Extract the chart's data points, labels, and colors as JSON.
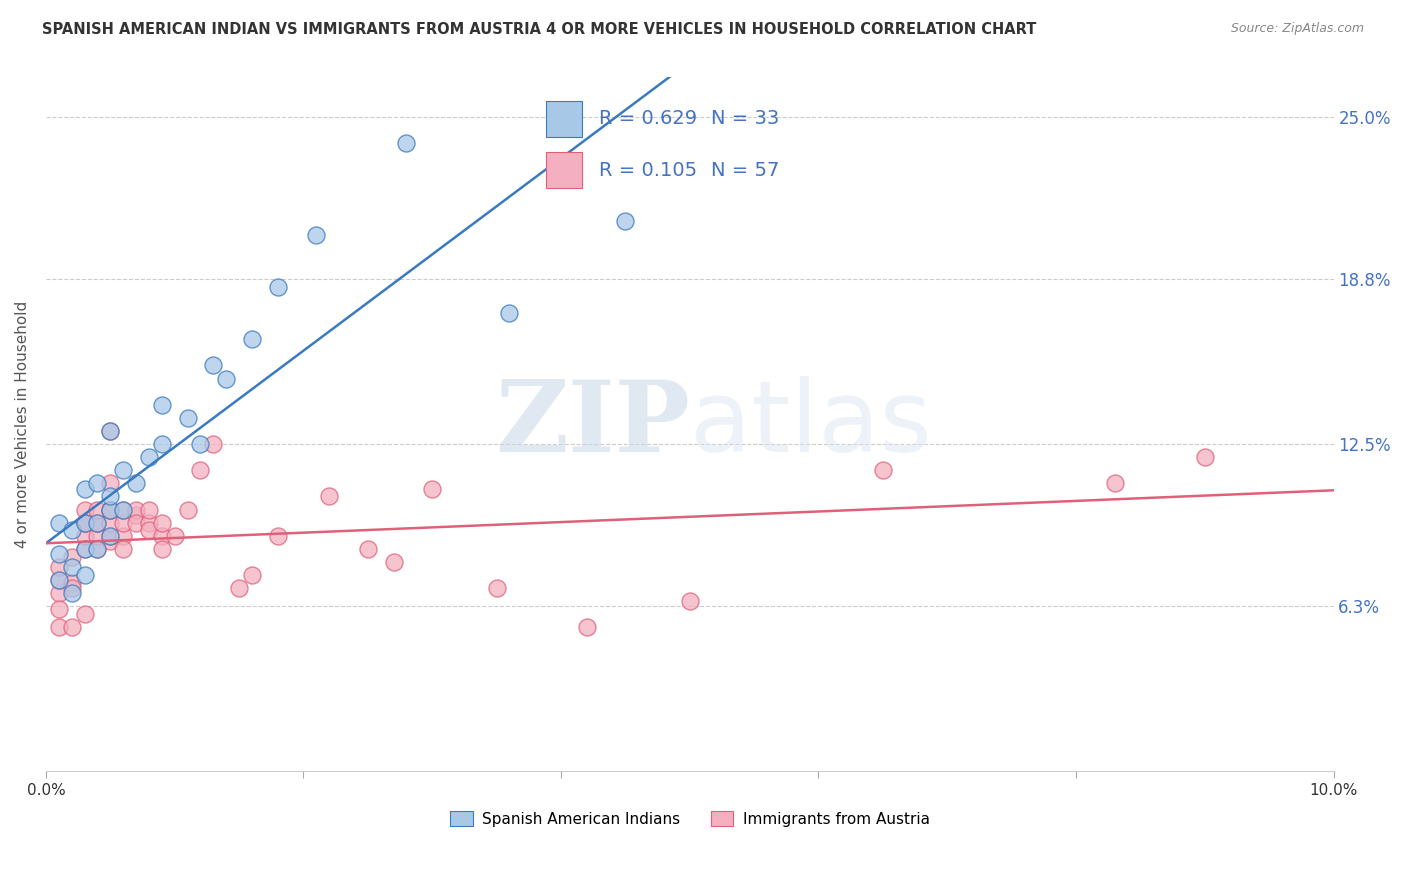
{
  "title": "SPANISH AMERICAN INDIAN VS IMMIGRANTS FROM AUSTRIA 4 OR MORE VEHICLES IN HOUSEHOLD CORRELATION CHART",
  "source": "Source: ZipAtlas.com",
  "ylabel": "4 or more Vehicles in Household",
  "xlim": [
    0.0,
    0.1
  ],
  "ylim": [
    0.0,
    0.265
  ],
  "ytick_positions": [
    0.063,
    0.125,
    0.188,
    0.25
  ],
  "ytick_labels_right": [
    "6.3%",
    "12.5%",
    "18.8%",
    "25.0%"
  ],
  "blue_R": 0.629,
  "blue_N": 33,
  "pink_R": 0.105,
  "pink_N": 57,
  "legend_label_blue": "Spanish American Indians",
  "legend_label_pink": "Immigrants from Austria",
  "blue_color": "#a8c8e8",
  "pink_color": "#f4b0c0",
  "blue_line_color": "#3a7abf",
  "pink_line_color": "#e0607a",
  "watermark_zip": "ZIP",
  "watermark_atlas": "atlas",
  "blue_x": [
    0.001,
    0.001,
    0.001,
    0.002,
    0.002,
    0.002,
    0.003,
    0.003,
    0.003,
    0.003,
    0.004,
    0.004,
    0.004,
    0.005,
    0.005,
    0.005,
    0.005,
    0.006,
    0.006,
    0.007,
    0.008,
    0.009,
    0.009,
    0.011,
    0.012,
    0.013,
    0.014,
    0.016,
    0.018,
    0.021,
    0.028,
    0.036,
    0.045
  ],
  "blue_y": [
    0.073,
    0.083,
    0.095,
    0.068,
    0.078,
    0.092,
    0.075,
    0.085,
    0.095,
    0.108,
    0.085,
    0.095,
    0.11,
    0.09,
    0.1,
    0.105,
    0.13,
    0.1,
    0.115,
    0.11,
    0.12,
    0.125,
    0.14,
    0.135,
    0.125,
    0.155,
    0.15,
    0.165,
    0.185,
    0.205,
    0.24,
    0.175,
    0.21
  ],
  "pink_x": [
    0.001,
    0.001,
    0.001,
    0.001,
    0.001,
    0.002,
    0.002,
    0.002,
    0.002,
    0.003,
    0.003,
    0.003,
    0.003,
    0.003,
    0.003,
    0.004,
    0.004,
    0.004,
    0.004,
    0.004,
    0.005,
    0.005,
    0.005,
    0.005,
    0.005,
    0.005,
    0.005,
    0.006,
    0.006,
    0.006,
    0.006,
    0.007,
    0.007,
    0.007,
    0.008,
    0.008,
    0.008,
    0.009,
    0.009,
    0.009,
    0.01,
    0.011,
    0.012,
    0.013,
    0.015,
    0.016,
    0.018,
    0.022,
    0.025,
    0.027,
    0.03,
    0.035,
    0.042,
    0.05,
    0.065,
    0.083,
    0.09
  ],
  "pink_y": [
    0.068,
    0.073,
    0.078,
    0.062,
    0.055,
    0.072,
    0.082,
    0.07,
    0.055,
    0.085,
    0.09,
    0.095,
    0.1,
    0.095,
    0.06,
    0.085,
    0.09,
    0.095,
    0.095,
    0.1,
    0.088,
    0.09,
    0.095,
    0.1,
    0.1,
    0.11,
    0.13,
    0.09,
    0.095,
    0.1,
    0.085,
    0.098,
    0.1,
    0.095,
    0.095,
    0.1,
    0.092,
    0.09,
    0.095,
    0.085,
    0.09,
    0.1,
    0.115,
    0.125,
    0.07,
    0.075,
    0.09,
    0.105,
    0.085,
    0.08,
    0.108,
    0.07,
    0.055,
    0.065,
    0.115,
    0.11,
    0.12
  ]
}
